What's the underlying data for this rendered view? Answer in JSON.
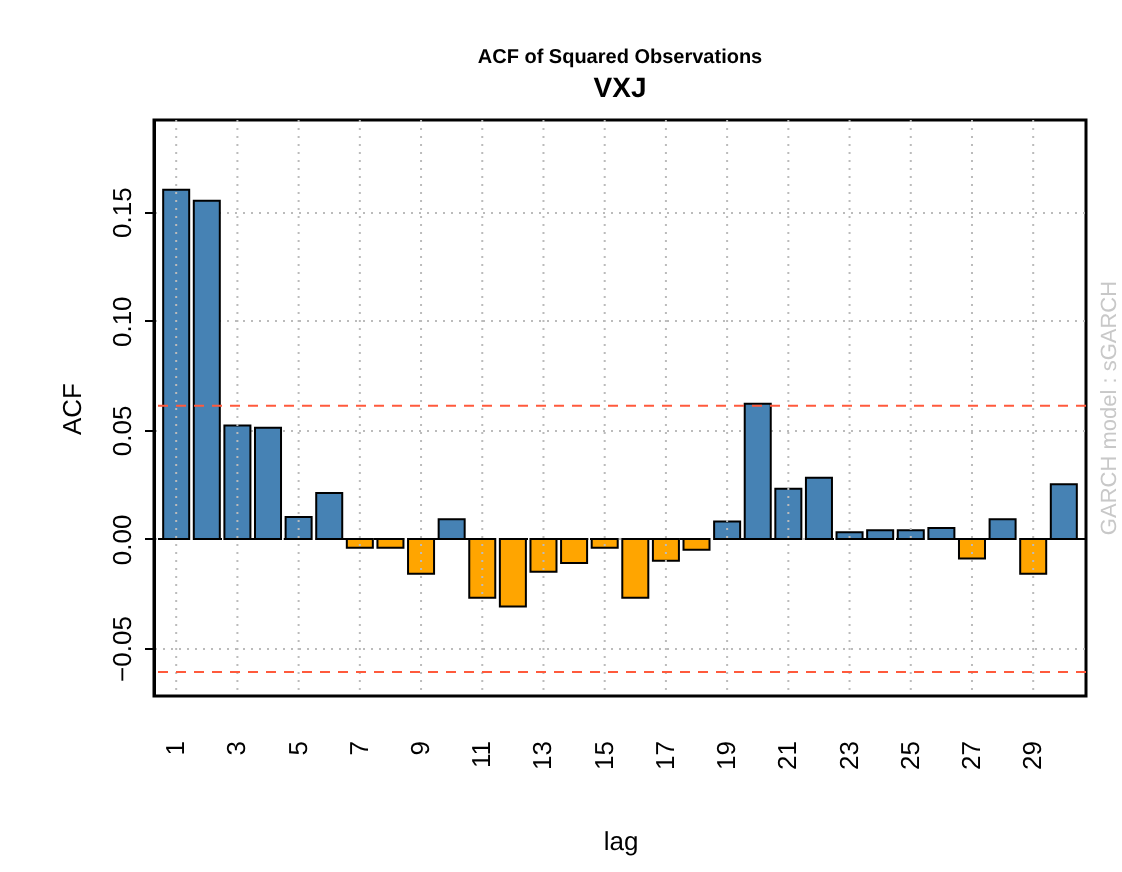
{
  "chart_data": {
    "type": "bar",
    "title": "ACF of Squared Observations",
    "subtitle": "VXJ",
    "xlabel": "lag",
    "ylabel": "ACF",
    "categories": [
      "1",
      null,
      "3",
      null,
      "5",
      null,
      "7",
      null,
      "9",
      null,
      "11",
      null,
      "13",
      null,
      "15",
      null,
      "17",
      null,
      "19",
      null,
      "21",
      null,
      "23",
      null,
      "25",
      null,
      "27",
      null,
      "29",
      null
    ],
    "values": [
      0.16,
      0.155,
      0.052,
      0.051,
      0.01,
      0.021,
      -0.004,
      -0.004,
      -0.016,
      0.009,
      -0.027,
      -0.031,
      -0.015,
      -0.011,
      -0.004,
      -0.027,
      -0.01,
      -0.005,
      0.008,
      0.062,
      0.023,
      0.028,
      0.003,
      0.004,
      0.004,
      0.005,
      -0.009,
      0.009,
      -0.016,
      0.025
    ],
    "colors": [
      "#4682b4",
      "#4682b4",
      "#4682b4",
      "#4682b4",
      "#4682b4",
      "#4682b4",
      "#ffa500",
      "#ffa500",
      "#ffa500",
      "#4682b4",
      "#ffa500",
      "#ffa500",
      "#ffa500",
      "#ffa500",
      "#ffa500",
      "#ffa500",
      "#ffa500",
      "#ffa500",
      "#4682b4",
      "#4682b4",
      "#4682b4",
      "#4682b4",
      "#4682b4",
      "#4682b4",
      "#4682b4",
      "#4682b4",
      "#ffa500",
      "#4682b4",
      "#ffa500",
      "#4682b4"
    ],
    "ylim": [
      -0.072,
      0.192
    ],
    "yticks": [
      {
        "value": -0.05,
        "label": "−0.05"
      },
      {
        "value": 0,
        "label": "0.00"
      },
      {
        "value": 0.05,
        "label": "0.05"
      },
      {
        "value": 0.1,
        "label": "0.10"
      },
      {
        "value": 0.15,
        "label": "0.15"
      }
    ],
    "grid": true,
    "ref_lines": [
      {
        "axis": "y",
        "value": 0.061,
        "color": "#ff5a3c",
        "line_style": "dashed"
      },
      {
        "axis": "y",
        "value": -0.061,
        "color": "#ff5a3c",
        "line_style": "dashed"
      },
      {
        "axis": "y",
        "value": 0,
        "color": "#000000",
        "line_style": "dashed"
      }
    ],
    "annotations": [
      "GARCH model : sGARCH"
    ]
  }
}
